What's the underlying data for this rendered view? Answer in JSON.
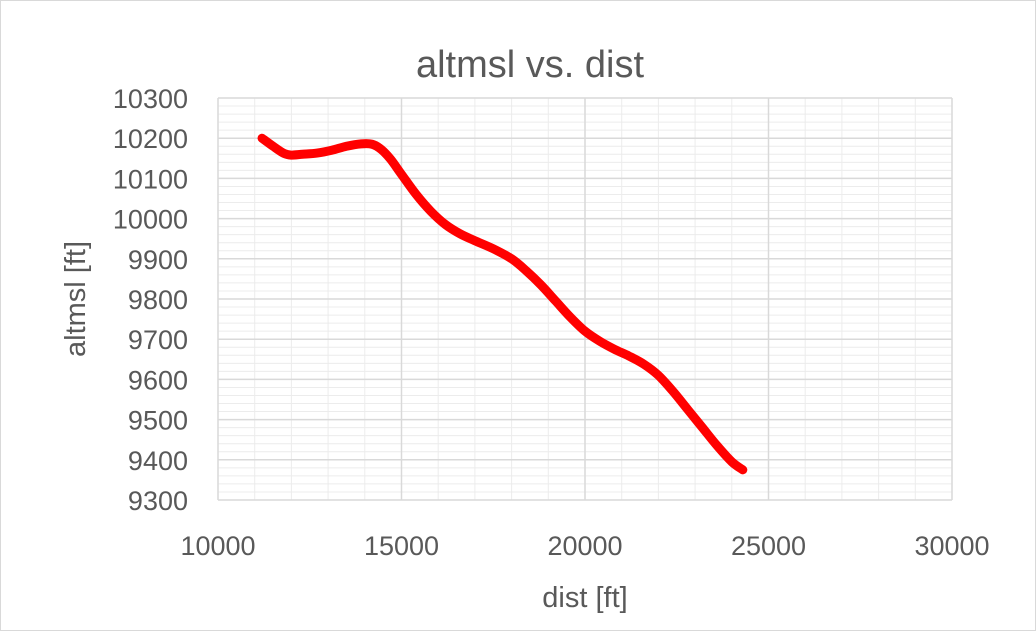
{
  "chart_data": {
    "type": "line",
    "title": "altmsl vs. dist",
    "xlabel": "dist [ft]",
    "ylabel": "altmsl [ft]",
    "xlim": [
      10000,
      30000
    ],
    "ylim": [
      9300,
      10300
    ],
    "xticks": [
      10000,
      15000,
      20000,
      25000,
      30000
    ],
    "yticks": [
      9300,
      9400,
      9500,
      9600,
      9700,
      9800,
      9900,
      10000,
      10100,
      10200,
      10300
    ],
    "grid": true,
    "legend": "none",
    "series": [
      {
        "color": "#ff0000",
        "x": [
          11200,
          11500,
          11800,
          12000,
          12300,
          12700,
          13100,
          13500,
          13900,
          14200,
          14450,
          14700,
          15000,
          15400,
          15800,
          16200,
          16600,
          17000,
          17500,
          18000,
          18400,
          18800,
          19200,
          19600,
          20000,
          20400,
          20800,
          21200,
          21600,
          22000,
          22400,
          22800,
          23200,
          23600,
          24000,
          24300
        ],
        "y": [
          10200,
          10180,
          10162,
          10158,
          10160,
          10163,
          10170,
          10180,
          10186,
          10185,
          10172,
          10148,
          10110,
          10060,
          10018,
          9985,
          9962,
          9945,
          9925,
          9900,
          9870,
          9835,
          9795,
          9755,
          9720,
          9695,
          9675,
          9658,
          9638,
          9610,
          9570,
          9525,
          9480,
          9435,
          9395,
          9375
        ]
      }
    ]
  }
}
